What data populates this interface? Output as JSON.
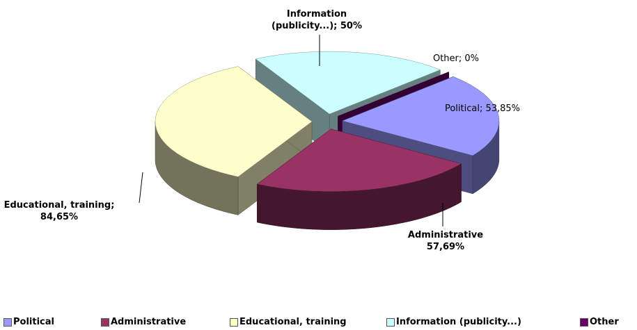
{
  "chart_data": {
    "type": "pie3d",
    "categories": [
      "Political",
      "Administrative",
      "Educational, training",
      "Information (publicity...)",
      "Other"
    ],
    "values": [
      53.85,
      57.69,
      84.65,
      50,
      0
    ],
    "value_labels": [
      "Political; 53,85%",
      "Administrative 57,69%",
      "Educational, training; 84,65%",
      "Information (publicity...); 50%",
      "Other; 0%"
    ],
    "colors": [
      "#9999ff",
      "#993366",
      "#ffffcc",
      "#ccffff",
      "#660066"
    ],
    "legend": "bottom"
  }
}
